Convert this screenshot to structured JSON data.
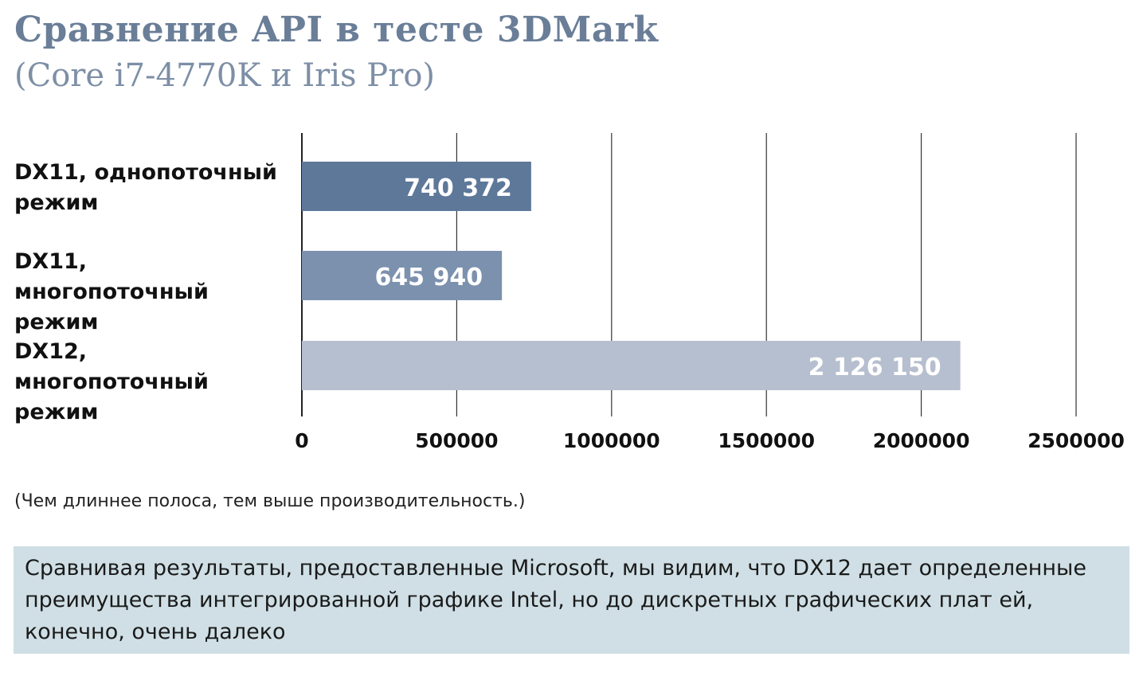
{
  "chart_data": {
    "type": "bar",
    "orientation": "horizontal",
    "title": "Сравнение API в тесте 3DMark",
    "subtitle": "(Core i7-4770K и Iris Pro)",
    "categories": [
      "DX11, однопоточный режим",
      "DX11, многопоточный режим",
      "DX12, многопоточный режим"
    ],
    "values": [
      740372,
      645940,
      2126150
    ],
    "value_labels": [
      "740 372",
      "645 940",
      "2 126 150"
    ],
    "colors": [
      "#5d7899",
      "#7b91ae",
      "#b6bfcf"
    ],
    "xlim": [
      0,
      2500000
    ],
    "xticks": [
      0,
      500000,
      1000000,
      1500000,
      2000000,
      2500000
    ],
    "xtick_labels": [
      "0",
      "500000",
      "1000000",
      "1500000",
      "2000000",
      "2500000"
    ],
    "grid": true,
    "xlabel": "",
    "ylabel": ""
  },
  "note": "(Чем длиннее полоса, тем выше производительность.)",
  "caption": "Сравнивая результаты, предоставленные Microsoft, мы видим, что DX12 дает определенные преимущества интегрированной графике Intel, но до дискретных графических плат ей, конечно, очень далеко"
}
